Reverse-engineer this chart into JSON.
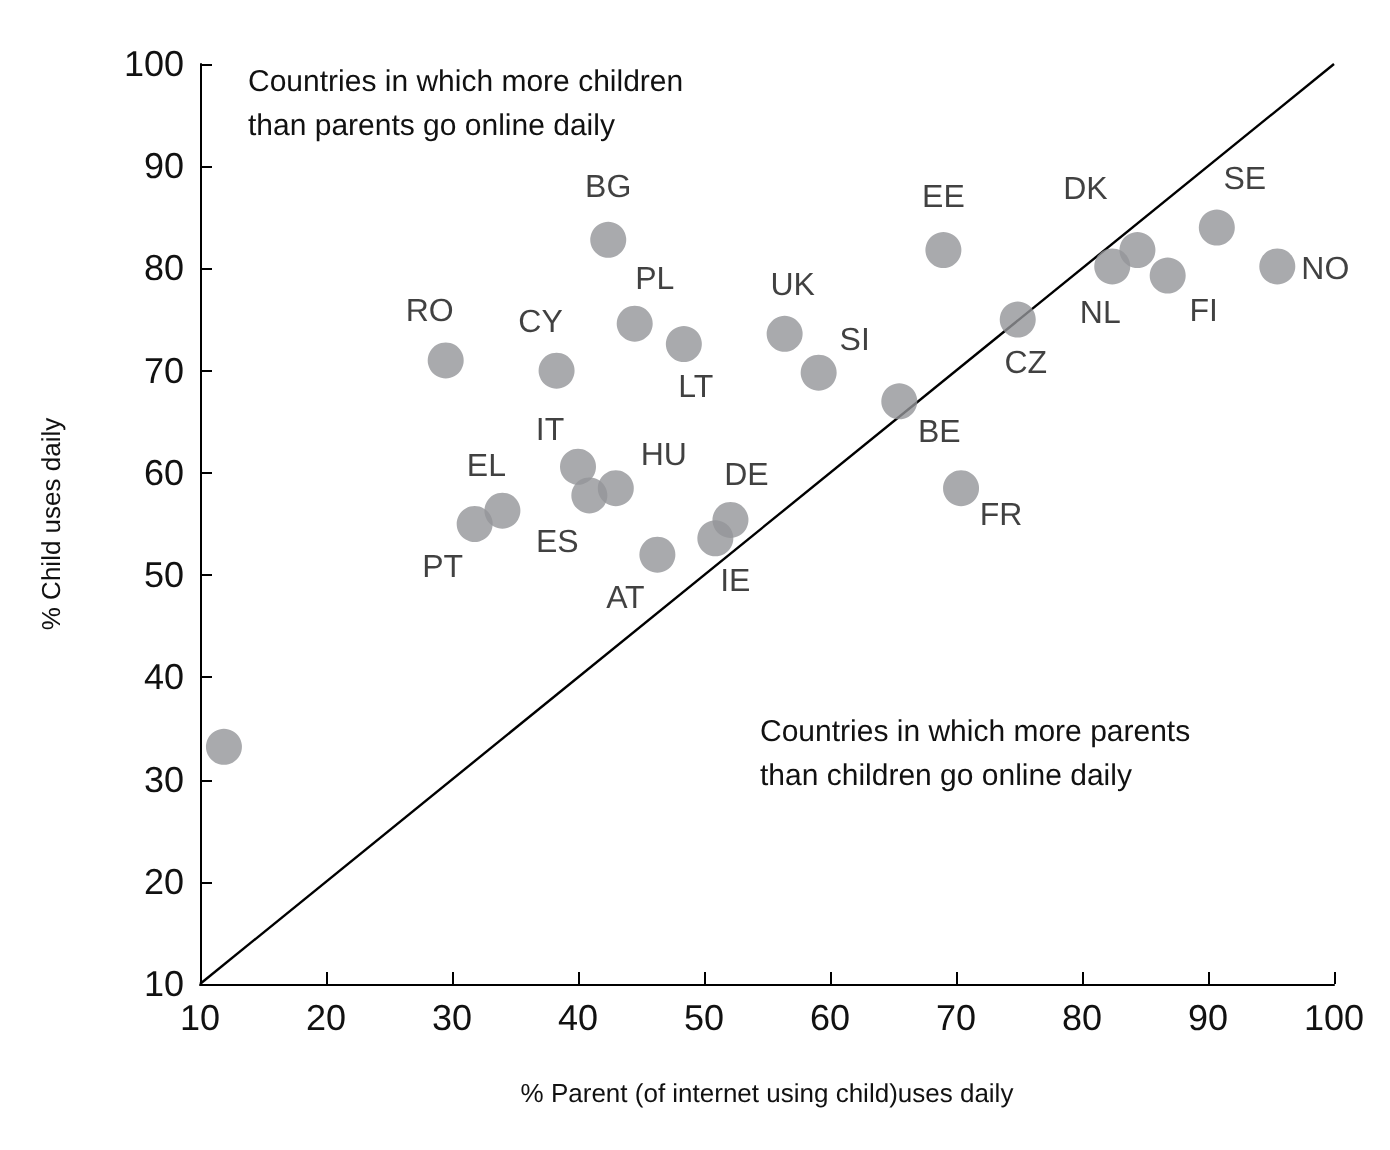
{
  "chart_data": {
    "type": "scatter",
    "xlabel": "% Parent (of internet using child)uses daily",
    "ylabel": "% Child uses daily",
    "xlim": [
      10,
      100
    ],
    "ylim": [
      10,
      100
    ],
    "xticks": [
      10,
      20,
      30,
      40,
      50,
      60,
      70,
      80,
      90,
      100
    ],
    "yticks": [
      10,
      20,
      30,
      40,
      50,
      60,
      70,
      80,
      90,
      100
    ],
    "grid": false,
    "marker": "circle",
    "series": [
      {
        "color": "#939598",
        "x": [
          11.9,
          29.5,
          38.3,
          42.4,
          44.5,
          48.4,
          56.4,
          59.1,
          69.0,
          74.9,
          65.5,
          70.4,
          84.4,
          82.4,
          86.8,
          90.7,
          95.5,
          40.0,
          43.0,
          40.9,
          34.0,
          31.8,
          52.1,
          50.9,
          46.3
        ],
        "values": [
          33.2,
          71.0,
          70.0,
          82.8,
          74.6,
          72.6,
          73.6,
          69.8,
          81.8,
          75.0,
          67.0,
          58.5,
          81.8,
          80.2,
          79.3,
          84.0,
          80.2,
          60.6,
          58.5,
          57.8,
          56.3,
          55.0,
          55.4,
          53.6,
          52.0
        ]
      },
      {
        "type": "line",
        "color": "#000000",
        "marker": "none",
        "x": [
          10,
          100
        ],
        "values": [
          10,
          100
        ]
      }
    ],
    "annotations": [
      "Countries in which more children than parents go online daily",
      "Countries in which more parents than children go online daily",
      {
        "text": "RO",
        "x": 29.5,
        "y": 71.0
      },
      {
        "text": "CY",
        "x": 38.3,
        "y": 70.0
      },
      {
        "text": "BG",
        "x": 42.4,
        "y": 82.8
      },
      {
        "text": "PL",
        "x": 44.5,
        "y": 74.6
      },
      {
        "text": "LT",
        "x": 48.4,
        "y": 72.6
      },
      {
        "text": "UK",
        "x": 56.4,
        "y": 73.6
      },
      {
        "text": "SI",
        "x": 59.1,
        "y": 69.8
      },
      {
        "text": "EE",
        "x": 69.0,
        "y": 81.8
      },
      {
        "text": "CZ",
        "x": 74.9,
        "y": 75.0
      },
      {
        "text": "BE",
        "x": 65.5,
        "y": 67.0
      },
      {
        "text": "FR",
        "x": 70.4,
        "y": 58.5
      },
      {
        "text": "DK",
        "x": 84.4,
        "y": 81.8
      },
      {
        "text": "NL",
        "x": 82.4,
        "y": 80.2
      },
      {
        "text": "FI",
        "x": 86.8,
        "y": 79.3
      },
      {
        "text": "SE",
        "x": 90.7,
        "y": 84.0
      },
      {
        "text": "NO",
        "x": 95.5,
        "y": 80.2
      },
      {
        "text": "IT",
        "x": 40.0,
        "y": 60.6
      },
      {
        "text": "HU",
        "x": 43.0,
        "y": 58.5
      },
      {
        "text": "ES",
        "x": 40.9,
        "y": 57.8
      },
      {
        "text": "EL",
        "x": 34.0,
        "y": 56.3
      },
      {
        "text": "PT",
        "x": 31.8,
        "y": 55.0
      },
      {
        "text": "DE",
        "x": 52.1,
        "y": 55.4
      },
      {
        "text": "IE",
        "x": 50.9,
        "y": 53.6
      },
      {
        "text": "AT",
        "x": 46.3,
        "y": 52.0
      }
    ]
  }
}
